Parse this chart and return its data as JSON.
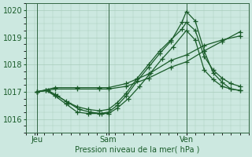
{
  "bg_color": "#cce8e0",
  "grid_color": "#a8ccbb",
  "line_color": "#1a5c2a",
  "marker": "+",
  "markersize": 4,
  "linewidth": 0.9,
  "xlabel": "Pression niveau de la mer( hPa )",
  "ylim": [
    1015.55,
    1020.25
  ],
  "yticks": [
    1016,
    1017,
    1018,
    1019,
    1020
  ],
  "xlim": [
    0,
    100
  ],
  "xtick_labels": [
    "Jeu",
    "Sam",
    "Ven"
  ],
  "xtick_positions": [
    5,
    37,
    72
  ],
  "vline_positions": [
    5,
    37,
    72
  ],
  "series": [
    {
      "x": [
        5,
        9,
        13,
        18,
        23,
        28,
        33,
        37,
        41,
        45,
        50,
        55,
        60,
        65,
        70,
        72,
        76,
        80,
        84,
        88,
        92,
        96
      ],
      "y": [
        1017.0,
        1017.05,
        1016.85,
        1016.55,
        1016.25,
        1016.2,
        1016.2,
        1016.25,
        1016.5,
        1016.85,
        1017.4,
        1017.9,
        1018.4,
        1018.85,
        1019.55,
        1019.95,
        1019.6,
        1018.5,
        1017.7,
        1017.35,
        1017.1,
        1017.05
      ]
    },
    {
      "x": [
        5,
        9,
        13,
        18,
        23,
        28,
        33,
        37,
        41,
        45,
        50,
        55,
        60,
        65,
        70,
        72,
        76,
        80,
        84,
        88,
        92,
        96
      ],
      "y": [
        1017.0,
        1017.05,
        1016.9,
        1016.65,
        1016.45,
        1016.35,
        1016.3,
        1016.35,
        1016.6,
        1016.95,
        1017.5,
        1018.0,
        1018.5,
        1018.9,
        1019.3,
        1019.55,
        1019.25,
        1018.3,
        1017.8,
        1017.5,
        1017.3,
        1017.2
      ]
    },
    {
      "x": [
        5,
        13,
        23,
        33,
        37,
        45,
        55,
        65,
        72,
        80,
        88,
        96
      ],
      "y": [
        1017.0,
        1017.1,
        1017.1,
        1017.1,
        1017.1,
        1017.2,
        1017.5,
        1017.9,
        1018.1,
        1018.5,
        1018.85,
        1019.2
      ]
    },
    {
      "x": [
        5,
        13,
        23,
        33,
        37,
        45,
        55,
        65,
        72,
        80,
        88,
        96
      ],
      "y": [
        1017.0,
        1017.15,
        1017.15,
        1017.15,
        1017.15,
        1017.3,
        1017.65,
        1018.15,
        1018.35,
        1018.7,
        1018.9,
        1019.05
      ]
    },
    {
      "x": [
        5,
        10,
        14,
        19,
        24,
        29,
        34,
        37,
        41,
        46,
        51,
        56,
        61,
        66,
        72,
        76,
        80,
        84,
        88,
        92,
        96
      ],
      "y": [
        1017.0,
        1017.05,
        1016.85,
        1016.6,
        1016.35,
        1016.25,
        1016.2,
        1016.2,
        1016.4,
        1016.75,
        1017.2,
        1017.7,
        1018.2,
        1018.65,
        1019.25,
        1018.9,
        1017.8,
        1017.45,
        1017.2,
        1017.1,
        1017.05
      ]
    }
  ]
}
